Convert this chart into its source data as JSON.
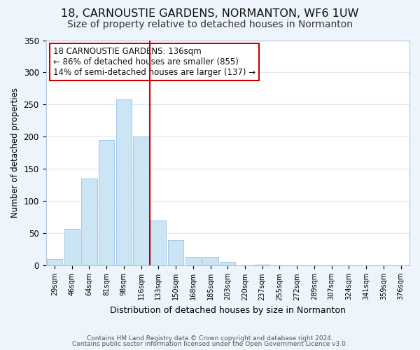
{
  "title": "18, CARNOUSTIE GARDENS, NORMANTON, WF6 1UW",
  "subtitle": "Size of property relative to detached houses in Normanton",
  "xlabel": "Distribution of detached houses by size in Normanton",
  "ylabel": "Number of detached properties",
  "footer_lines": [
    "Contains HM Land Registry data © Crown copyright and database right 2024.",
    "Contains public sector information licensed under the Open Government Licence v3.0."
  ],
  "bin_labels": [
    "29sqm",
    "46sqm",
    "64sqm",
    "81sqm",
    "98sqm",
    "116sqm",
    "133sqm",
    "150sqm",
    "168sqm",
    "185sqm",
    "203sqm",
    "220sqm",
    "237sqm",
    "255sqm",
    "272sqm",
    "289sqm",
    "307sqm",
    "324sqm",
    "341sqm",
    "359sqm",
    "376sqm"
  ],
  "bar_heights": [
    10,
    57,
    135,
    195,
    258,
    200,
    70,
    40,
    13,
    14,
    6,
    0,
    2,
    0,
    0,
    0,
    0,
    0,
    0,
    1,
    0
  ],
  "bar_color": "#cce5f5",
  "bar_edge_color": "#a0c8e8",
  "annotation_title": "18 CARNOUSTIE GARDENS: 136sqm",
  "annotation_line1": "← 86% of detached houses are smaller (855)",
  "annotation_line2": "14% of semi-detached houses are larger (137) →",
  "ylim": [
    0,
    350
  ],
  "yticks": [
    0,
    50,
    100,
    150,
    200,
    250,
    300,
    350
  ],
  "grid_color": "#d8e8f4",
  "background_color": "#edf4fb",
  "plot_bg_color": "#ffffff",
  "title_fontsize": 11.5,
  "subtitle_fontsize": 10,
  "ref_line_color": "#cc0000",
  "annotation_box_edge_color": "#cc0000",
  "ref_bin_index": 6
}
